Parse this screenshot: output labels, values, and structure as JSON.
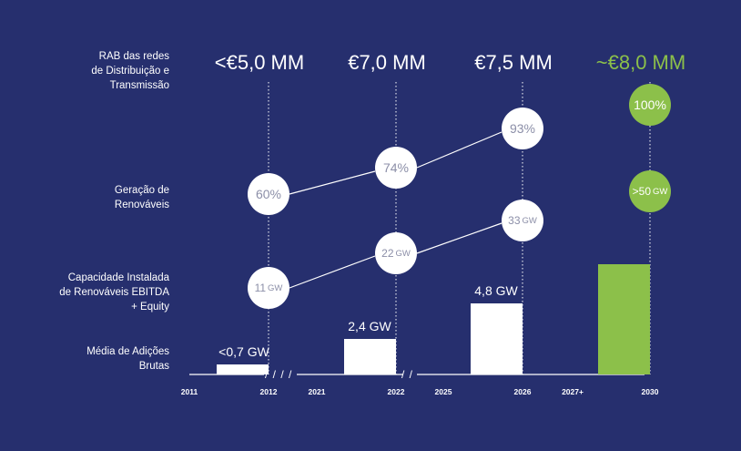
{
  "row_labels": {
    "rab": "RAB das redes\nde Distribuição e\nTransmissão",
    "renewables": "Geração de\nRenováveis",
    "ebitda": "Capacidade Instalada\nde Renováveis EBITDA\n+ Equity",
    "additions": "Média de Adições\nBrutas"
  },
  "colors": {
    "background": "#262f6e",
    "accent": "#8cc04a",
    "white": "#ffffff",
    "circle_text": "#8c8fa8"
  },
  "chart_data": {
    "type": "bar",
    "groups": [
      {
        "from": "2011",
        "to": "2012",
        "rab": "<€5,0 MM",
        "renewables_share": "60%",
        "ebitda_capacity_value": "11",
        "ebitda_capacity_unit": "GW",
        "additions_label": "<0,7 GW",
        "additions_gw": 0.7,
        "highlight": false
      },
      {
        "from": "2021",
        "to": "2022",
        "rab": "€7,0 MM",
        "renewables_share": "74%",
        "ebitda_capacity_value": "22",
        "ebitda_capacity_unit": "GW",
        "additions_label": "2,4 GW",
        "additions_gw": 2.4,
        "highlight": false
      },
      {
        "from": "2025",
        "to": "2026",
        "rab": "€7,5 MM",
        "renewables_share": "93%",
        "ebitda_capacity_value": "33",
        "ebitda_capacity_unit": "GW",
        "additions_label": "4,8 GW",
        "additions_gw": 4.8,
        "highlight": false
      },
      {
        "from": "2027+",
        "to": "2030",
        "rab": "~€8,0 MM",
        "renewables_share": "100%",
        "ebitda_capacity_value": ">50",
        "ebitda_capacity_unit": "GW",
        "additions_label": "",
        "additions_gw": 7.5,
        "highlight": true
      }
    ],
    "axis_breaks": [
      "/ / / /",
      "/ /"
    ]
  }
}
